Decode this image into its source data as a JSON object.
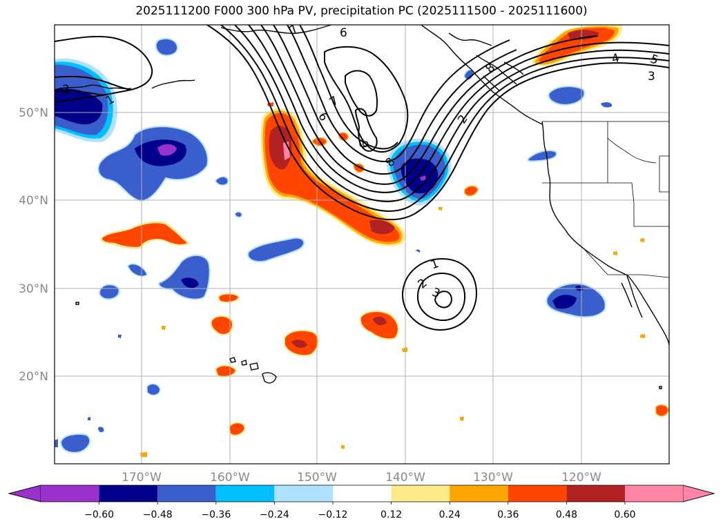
{
  "title": "2025111200 F000 300 hPa PV, precipitation PC (2025111500 - 2025111600)",
  "map": {
    "lon_range": [
      -180,
      -110
    ],
    "lat_range": [
      10,
      60
    ],
    "lon_ticks": [
      {
        "value": -170,
        "label": "170°W"
      },
      {
        "value": -160,
        "label": "160°W"
      },
      {
        "value": -150,
        "label": "150°W"
      },
      {
        "value": -140,
        "label": "140°W"
      },
      {
        "value": -130,
        "label": "130°W"
      },
      {
        "value": -120,
        "label": "120°W"
      }
    ],
    "lat_ticks": [
      {
        "value": 50,
        "label": "50°N"
      },
      {
        "value": 40,
        "label": "40°N"
      },
      {
        "value": 30,
        "label": "30°N"
      },
      {
        "value": 20,
        "label": "20°N"
      }
    ],
    "gridlines": true,
    "contour_labels": [
      "6",
      "7",
      "6",
      "9",
      "8",
      "2",
      "4",
      "5",
      "3",
      "2",
      "1",
      "1",
      "2",
      "3",
      "7",
      "8"
    ]
  },
  "colorbar": {
    "ticks": [
      "−0.60",
      "−0.48",
      "−0.36",
      "−0.24",
      "−0.12",
      "0.12",
      "0.24",
      "0.36",
      "0.48",
      "0.60"
    ],
    "colors": [
      "#9932cc",
      "#00008b",
      "#3a5fcd",
      "#00bfff",
      "#b0e2ff",
      "#ffffff",
      "#ffeb8a",
      "#ffa500",
      "#ff4500",
      "#b22222",
      "#ff85a8"
    ],
    "extend": "both"
  }
}
